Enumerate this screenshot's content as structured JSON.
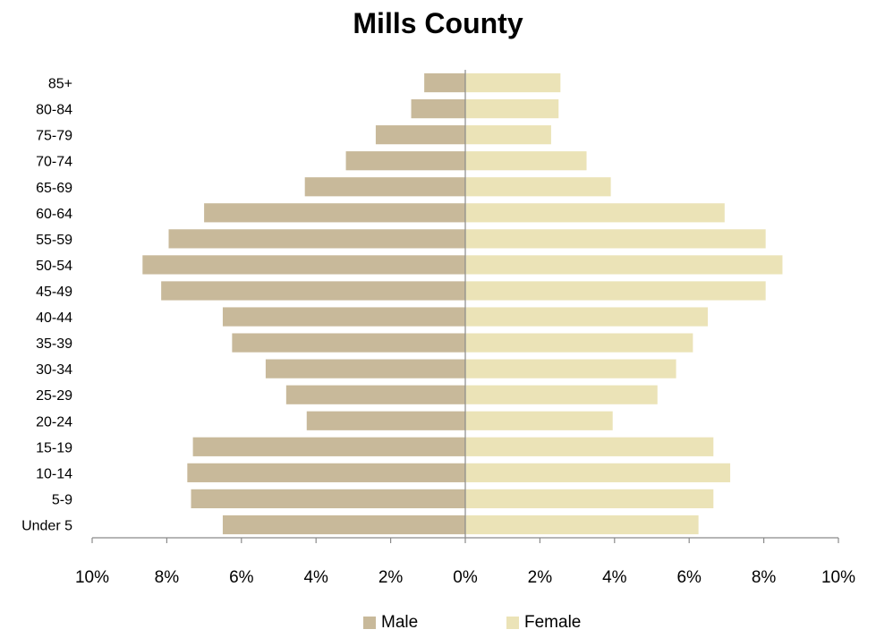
{
  "chart_data": {
    "type": "bar",
    "orientation": "horizontal",
    "subtype": "population-pyramid",
    "title": "Mills County",
    "categories": [
      "85+",
      "80-84",
      "75-79",
      "70-74",
      "65-69",
      "60-64",
      "55-59",
      "50-54",
      "45-49",
      "40-44",
      "35-39",
      "30-34",
      "25-29",
      "20-24",
      "15-19",
      "10-14",
      "5-9",
      "Under 5"
    ],
    "series": [
      {
        "name": "Male",
        "color": "#c8b99a",
        "values": [
          1.1,
          1.45,
          2.4,
          3.2,
          4.3,
          7.0,
          7.95,
          8.65,
          8.15,
          6.5,
          6.25,
          5.35,
          4.8,
          4.25,
          7.3,
          7.45,
          7.35,
          6.5
        ]
      },
      {
        "name": "Female",
        "color": "#ebe3b7",
        "values": [
          2.55,
          2.5,
          2.3,
          3.25,
          3.9,
          6.95,
          8.05,
          8.5,
          8.05,
          6.5,
          6.1,
          5.65,
          5.15,
          3.95,
          6.65,
          7.1,
          6.65,
          6.25
        ]
      }
    ],
    "xlim": [
      -10,
      10
    ],
    "xticks": [
      "10%",
      "8%",
      "6%",
      "4%",
      "2%",
      "0%",
      "2%",
      "4%",
      "6%",
      "8%",
      "10%"
    ],
    "xtick_values": [
      -10,
      -8,
      -6,
      -4,
      -2,
      0,
      2,
      4,
      6,
      8,
      10
    ],
    "xlabel": "",
    "ylabel": "",
    "legend_position": "bottom",
    "grid": false
  }
}
